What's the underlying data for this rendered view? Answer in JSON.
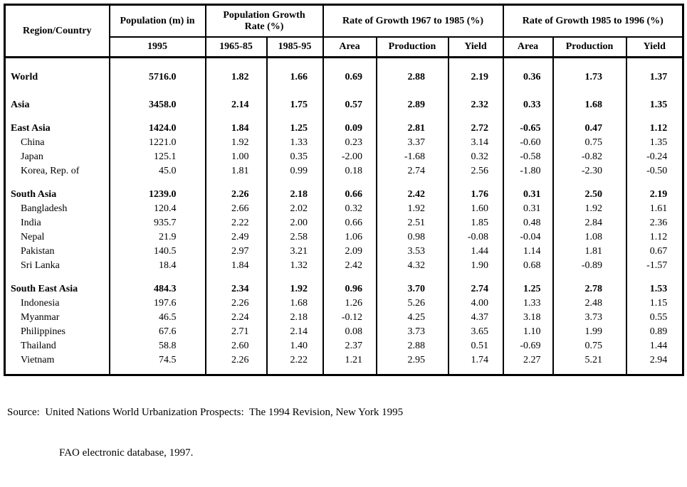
{
  "table": {
    "header": {
      "region_country": "Region/Country",
      "population": "Population (m) in",
      "population_growth": "Population Growth Rate (%)",
      "rate_1967_1985": "Rate of Growth 1967 to 1985 (%)",
      "rate_1985_1996": "Rate of Growth 1985 to 1996 (%)",
      "sub": [
        "1995",
        "1965-85",
        "1985-95",
        "Area",
        "Production",
        "Yield",
        "Area",
        "Production",
        "Yield"
      ]
    },
    "rows": [
      {
        "name": "World",
        "group": true,
        "values": [
          "5716.0",
          "1.82",
          "1.66",
          "0.69",
          "2.88",
          "2.19",
          "0.36",
          "1.73",
          "1.37"
        ]
      },
      {
        "name": "Asia",
        "group": true,
        "values": [
          "3458.0",
          "2.14",
          "1.75",
          "0.57",
          "2.89",
          "2.32",
          "0.33",
          "1.68",
          "1.35"
        ]
      },
      {
        "name": "East Asia",
        "group": true,
        "values": [
          "1424.0",
          "1.84",
          "1.25",
          "0.09",
          "2.81",
          "2.72",
          "-0.65",
          "0.47",
          "1.12"
        ]
      },
      {
        "name": "China",
        "group": false,
        "values": [
          "1221.0",
          "1.92",
          "1.33",
          "0.23",
          "3.37",
          "3.14",
          "-0.60",
          "0.75",
          "1.35"
        ]
      },
      {
        "name": "Japan",
        "group": false,
        "values": [
          "125.1",
          "1.00",
          "0.35",
          "-2.00",
          "-1.68",
          "0.32",
          "-0.58",
          "-0.82",
          "-0.24"
        ]
      },
      {
        "name": "Korea, Rep. of",
        "group": false,
        "values": [
          "45.0",
          "1.81",
          "0.99",
          "0.18",
          "2.74",
          "2.56",
          "-1.80",
          "-2.30",
          "-0.50"
        ]
      },
      {
        "name": "South Asia",
        "group": true,
        "values": [
          "1239.0",
          "2.26",
          "2.18",
          "0.66",
          "2.42",
          "1.76",
          "0.31",
          "2.50",
          "2.19"
        ]
      },
      {
        "name": "Bangladesh",
        "group": false,
        "values": [
          "120.4",
          "2.66",
          "2.02",
          "0.32",
          "1.92",
          "1.60",
          "0.31",
          "1.92",
          "1.61"
        ]
      },
      {
        "name": "India",
        "group": false,
        "values": [
          "935.7",
          "2.22",
          "2.00",
          "0.66",
          "2.51",
          "1.85",
          "0.48",
          "2.84",
          "2.36"
        ]
      },
      {
        "name": "Nepal",
        "group": false,
        "values": [
          "21.9",
          "2.49",
          "2.58",
          "1.06",
          "0.98",
          "-0.08",
          "-0.04",
          "1.08",
          "1.12"
        ]
      },
      {
        "name": "Pakistan",
        "group": false,
        "values": [
          "140.5",
          "2.97",
          "3.21",
          "2.09",
          "3.53",
          "1.44",
          "1.14",
          "1.81",
          "0.67"
        ]
      },
      {
        "name": "Sri Lanka",
        "group": false,
        "values": [
          "18.4",
          "1.84",
          "1.32",
          "2.42",
          "4.32",
          "1.90",
          "0.68",
          "-0.89",
          "-1.57"
        ]
      },
      {
        "name": "South East Asia",
        "group": true,
        "values": [
          "484.3",
          "2.34",
          "1.92",
          "0.96",
          "3.70",
          "2.74",
          "1.25",
          "2.78",
          "1.53"
        ]
      },
      {
        "name": "Indonesia",
        "group": false,
        "values": [
          "197.6",
          "2.26",
          "1.68",
          "1.26",
          "5.26",
          "4.00",
          "1.33",
          "2.48",
          "1.15"
        ]
      },
      {
        "name": "Myanmar",
        "group": false,
        "values": [
          "46.5",
          "2.24",
          "2.18",
          "-0.12",
          "4.25",
          "4.37",
          "3.18",
          "3.73",
          "0.55"
        ]
      },
      {
        "name": "Philippines",
        "group": false,
        "values": [
          "67.6",
          "2.71",
          "2.14",
          "0.08",
          "3.73",
          "3.65",
          "1.10",
          "1.99",
          "0.89"
        ]
      },
      {
        "name": "Thailand",
        "group": false,
        "values": [
          "58.8",
          "2.60",
          "1.40",
          "2.37",
          "2.88",
          "0.51",
          "-0.69",
          "0.75",
          "1.44"
        ]
      },
      {
        "name": "Vietnam",
        "group": false,
        "values": [
          "74.5",
          "2.26",
          "2.22",
          "1.21",
          "2.95",
          "1.74",
          "2.27",
          "5.21",
          "2.94"
        ]
      }
    ]
  },
  "footer": {
    "source_line1": "Source:  United Nations World Urbanization Prospects:  The 1994 Revision, New York 1995",
    "source_line2": "FAO electronic database, 1997."
  }
}
